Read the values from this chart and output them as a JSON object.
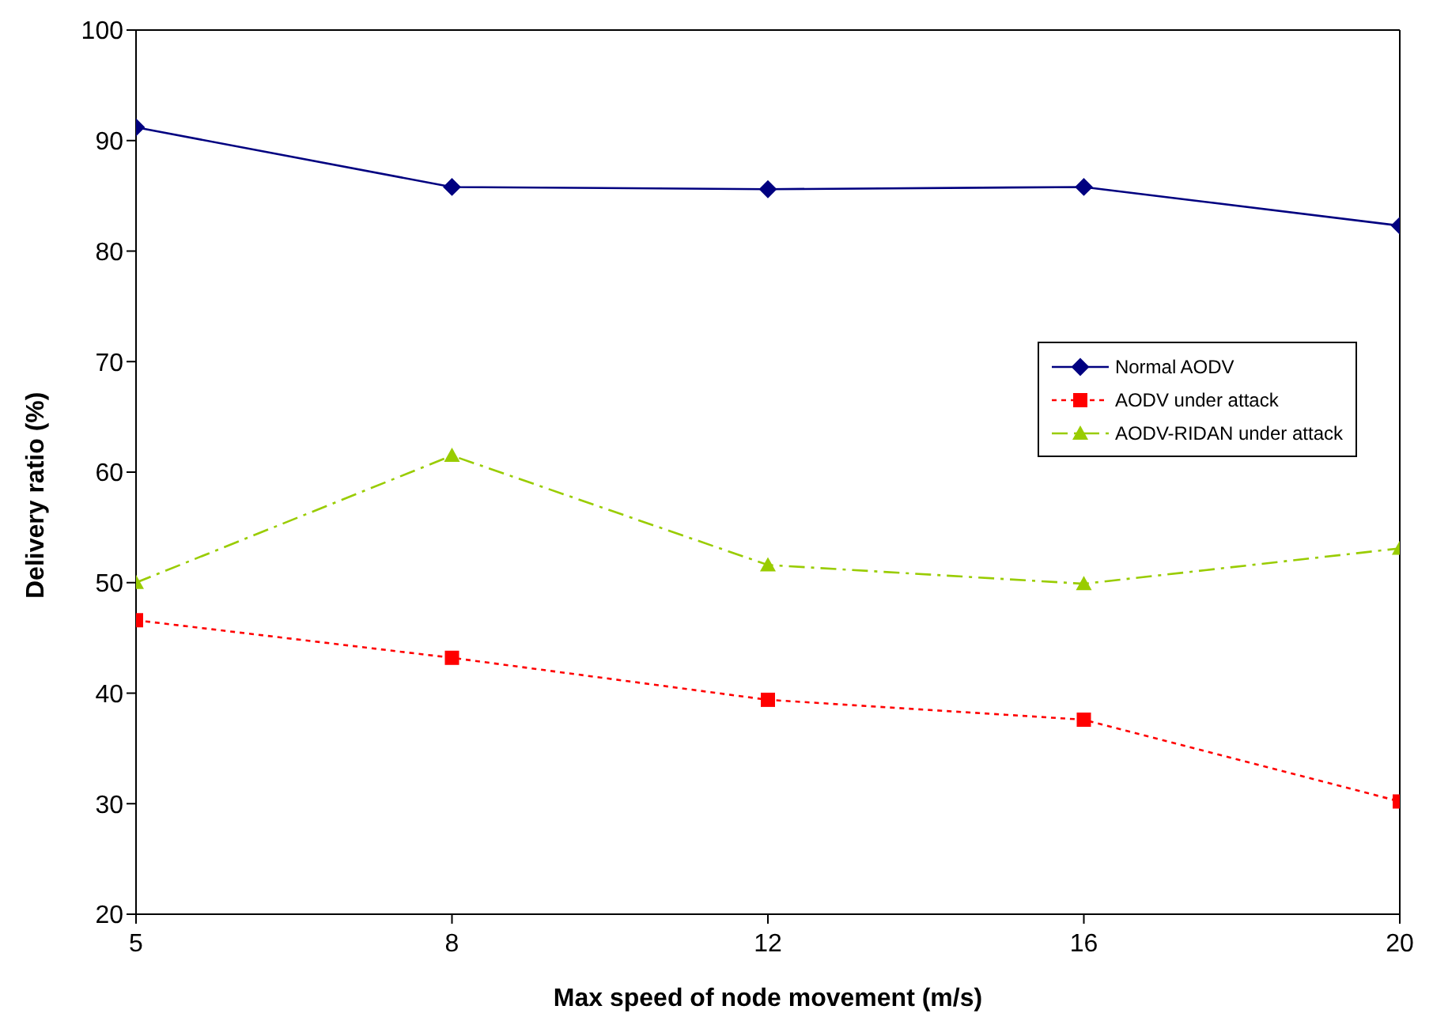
{
  "chart_data": {
    "type": "line",
    "xlabel": "Max speed of node movement (m/s)",
    "ylabel": "Delivery ratio (%)",
    "categories": [
      "5",
      "8",
      "12",
      "16",
      "20"
    ],
    "series": [
      {
        "name": "Normal AODV",
        "color": "#000080",
        "values": [
          91.2,
          85.8,
          85.6,
          85.8,
          82.3
        ],
        "marker": "diamond",
        "line_style": "solid"
      },
      {
        "name": "AODV under attack",
        "color": "#ff0000",
        "values": [
          46.6,
          43.2,
          39.4,
          37.6,
          30.2
        ],
        "marker": "square",
        "line_style": "dotted"
      },
      {
        "name": "AODV-RIDAN under attack",
        "color": "#99cc00",
        "values": [
          50.0,
          61.5,
          51.6,
          49.9,
          53.1
        ],
        "marker": "triangle",
        "line_style": "dashed"
      }
    ],
    "ylim": [
      20,
      100
    ],
    "yticks": [
      20,
      30,
      40,
      50,
      60,
      70,
      80,
      90,
      100
    ],
    "legend": "right"
  }
}
